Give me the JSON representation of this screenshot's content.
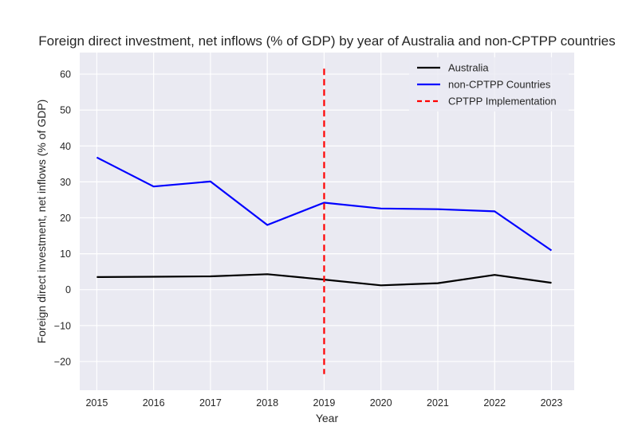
{
  "chart_data": {
    "type": "line",
    "title": "Foreign direct investment, net inflows (% of GDP) by year of Australia and non-CPTPP countries",
    "xlabel": "Year",
    "ylabel": "Foreign direct investment, net inflows (% of GDP)",
    "x": [
      2015,
      2016,
      2017,
      2018,
      2019,
      2020,
      2021,
      2022,
      2023
    ],
    "xlim": [
      2014.7,
      2023.4
    ],
    "ylim": [
      -28,
      66
    ],
    "yticks": [
      -20,
      -10,
      0,
      10,
      20,
      30,
      40,
      50,
      60
    ],
    "grid": true,
    "legend_position": "top-right",
    "series": [
      {
        "name": "Australia",
        "color": "#000000",
        "style": "solid",
        "values": [
          3.5,
          3.6,
          3.7,
          4.3,
          2.8,
          1.2,
          1.8,
          4.1,
          1.9
        ]
      },
      {
        "name": "non-CPTPP Countries",
        "color": "#0000ff",
        "style": "solid",
        "values": [
          36.8,
          28.7,
          30.1,
          18.0,
          24.2,
          22.6,
          22.4,
          21.8,
          10.9
        ]
      }
    ],
    "annotations": [
      {
        "name": "CPTPP Implementation",
        "type": "vline",
        "x": 2019,
        "y_range": [
          -23.5,
          61.5
        ],
        "color": "#ff0000",
        "style": "dashed"
      }
    ]
  }
}
